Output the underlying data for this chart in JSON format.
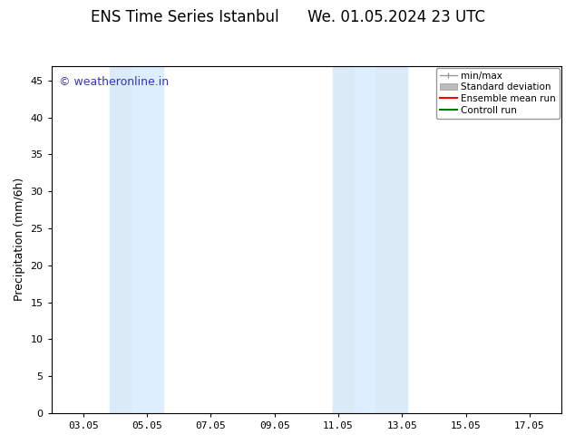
{
  "title": "ENS Time Series Istanbul      We. 01.05.2024 23 UTC",
  "ylabel": "Precipitation (mm/6h)",
  "ylim": [
    0,
    47
  ],
  "yticks": [
    0,
    5,
    10,
    15,
    20,
    25,
    30,
    35,
    40,
    45
  ],
  "xtick_labels": [
    "03.05",
    "05.05",
    "07.05",
    "09.05",
    "11.05",
    "13.05",
    "15.05",
    "17.05"
  ],
  "xtick_positions": [
    3,
    5,
    7,
    9,
    11,
    13,
    15,
    17
  ],
  "xlim": [
    2,
    18
  ],
  "shaded_regions": [
    {
      "xmin": 3.83,
      "xmax": 4.5,
      "color": "#daeaf7"
    },
    {
      "xmin": 4.5,
      "xmax": 5.5,
      "color": "#ddeeff"
    },
    {
      "xmin": 10.83,
      "xmax": 11.5,
      "color": "#daeaf7"
    },
    {
      "xmin": 11.5,
      "xmax": 12.17,
      "color": "#ddeeff"
    },
    {
      "xmin": 12.17,
      "xmax": 13.17,
      "color": "#daeaf7"
    }
  ],
  "watermark_text": "© weatheronline.in",
  "watermark_color": "#3333cc",
  "watermark_fontsize": 9,
  "background_color": "#ffffff",
  "plot_bg_color": "#ffffff",
  "legend_items": [
    {
      "label": "min/max",
      "color": "#999999",
      "style": "errorbar"
    },
    {
      "label": "Standard deviation",
      "color": "#bbbbbb",
      "style": "box"
    },
    {
      "label": "Ensemble mean run",
      "color": "#ff0000",
      "style": "line"
    },
    {
      "label": "Controll run",
      "color": "#007700",
      "style": "line"
    }
  ],
  "title_fontsize": 12,
  "axis_label_fontsize": 9,
  "tick_fontsize": 8,
  "legend_fontsize": 7.5
}
